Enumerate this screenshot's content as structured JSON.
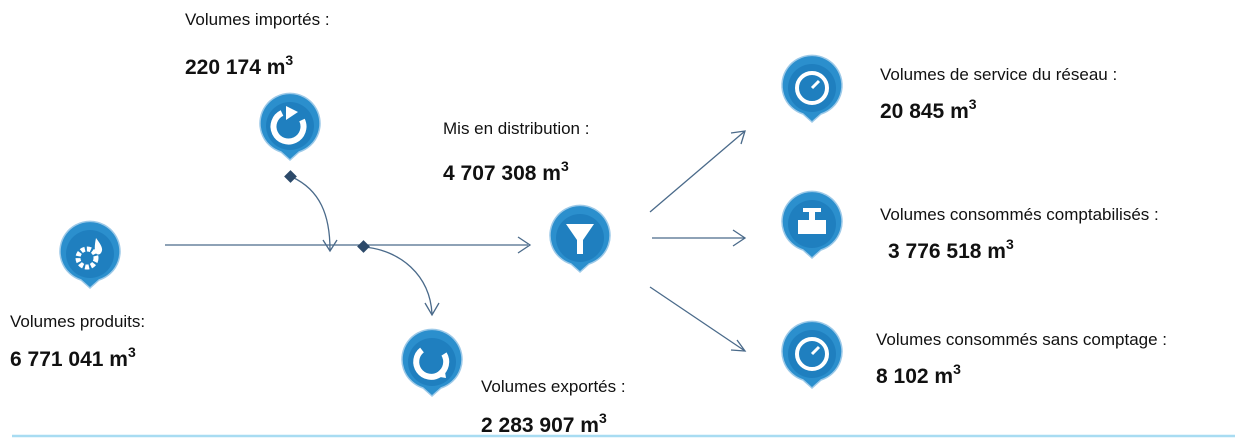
{
  "nodes": [
    {
      "label": "Volumes importés :",
      "value": "220 174 m",
      "exponent": "3"
    },
    {
      "label": "Volumes produits:",
      "value": "6 771 041 m",
      "exponent": "3"
    },
    {
      "label": "Mis en distribution :",
      "value": "4 707 308 m",
      "exponent": "3"
    },
    {
      "label": "Volumes exportés :",
      "value": "2 283 907 m",
      "exponent": "3"
    },
    {
      "label": "Volumes de service du réseau :",
      "value": "20 845 m",
      "exponent": "3"
    },
    {
      "label": "Volumes consommés comptabilisés :",
      "value": "3 776 518 m",
      "exponent": "3"
    },
    {
      "label": "Volumes consommés sans comptage :",
      "value": "8 102 m",
      "exponent": "3"
    }
  ]
}
